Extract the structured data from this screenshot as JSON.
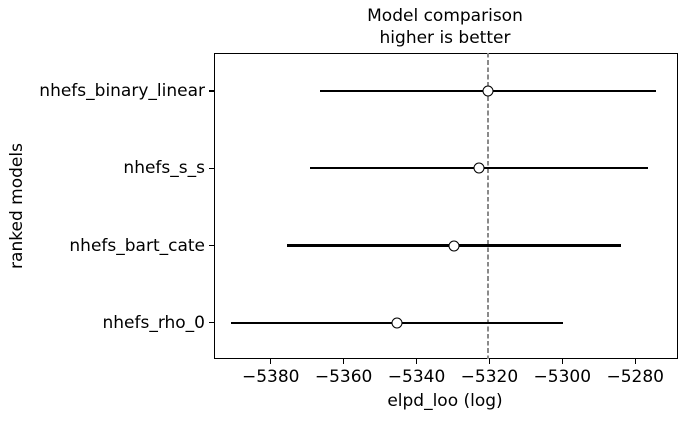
{
  "chart_data": {
    "type": "scatter",
    "variant": "errorbar-model-comparison",
    "title": "Model comparison",
    "subtitle": "higher is better",
    "xlabel": "elpd_loo (log)",
    "ylabel": "ranked models",
    "xlim": [
      -5395.7,
      -5268.4
    ],
    "xticks": [
      -5380,
      -5360,
      -5340,
      -5320,
      -5300,
      -5280
    ],
    "xtick_labels": [
      "−5380",
      "−5360",
      "−5340",
      "−5320",
      "−5300",
      "−5280"
    ],
    "grid": false,
    "legend": null,
    "ref_line_x": -5320.4,
    "ref_line_style": "dashed",
    "models": [
      {
        "name": "nhefs_binary_linear",
        "elpd_loo": -5320.4,
        "ci_lower": -5366.4,
        "ci_upper": -5274.3
      },
      {
        "name": "nhefs_s_s",
        "elpd_loo": -5322.9,
        "ci_lower": -5369.1,
        "ci_upper": -5276.6
      },
      {
        "name": "nhefs_bart_cate",
        "elpd_loo": -5329.8,
        "ci_lower": -5375.5,
        "ci_upper": -5283.9
      },
      {
        "name": "nhefs_rho_0",
        "elpd_loo": -5345.3,
        "ci_lower": -5390.8,
        "ci_upper": -5299.9
      }
    ],
    "colors": {
      "errorbar_line": "#000000",
      "marker_fill": "#ffffff",
      "marker_edge": "#000000",
      "ref_line": "#8a8a8a",
      "text": "#000000",
      "background": "#ffffff"
    }
  }
}
